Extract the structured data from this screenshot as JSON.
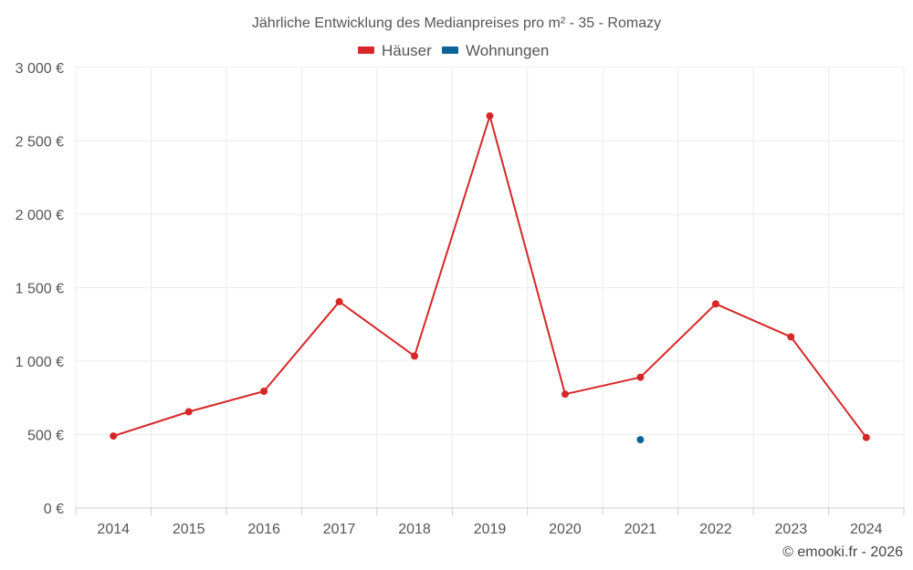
{
  "chart_data": {
    "type": "line",
    "title": "Jährliche Entwicklung des Medianpreises pro m² - 35 - Romazy",
    "categories": [
      "2014",
      "2015",
      "2016",
      "2017",
      "2018",
      "2019",
      "2020",
      "2021",
      "2022",
      "2023",
      "2024"
    ],
    "ylim": [
      0,
      3000
    ],
    "yticks": [
      0,
      500,
      1000,
      1500,
      2000,
      2500,
      3000
    ],
    "ytick_labels": [
      "0 €",
      "500 €",
      "1 000 €",
      "1 500 €",
      "2 000 €",
      "2 500 €",
      "3 000 €"
    ],
    "grid": true,
    "legend_position": "top-center",
    "series": [
      {
        "name": "Häuser",
        "color": "#d62728",
        "values": [
          490,
          655,
          795,
          1405,
          1035,
          2670,
          775,
          890,
          1390,
          1165,
          480
        ]
      },
      {
        "name": "Wohnungen",
        "color": "#0a6399",
        "values": [
          null,
          null,
          null,
          null,
          null,
          null,
          null,
          465,
          null,
          null,
          null
        ]
      }
    ],
    "credit": "© emooki.fr - 2026"
  }
}
